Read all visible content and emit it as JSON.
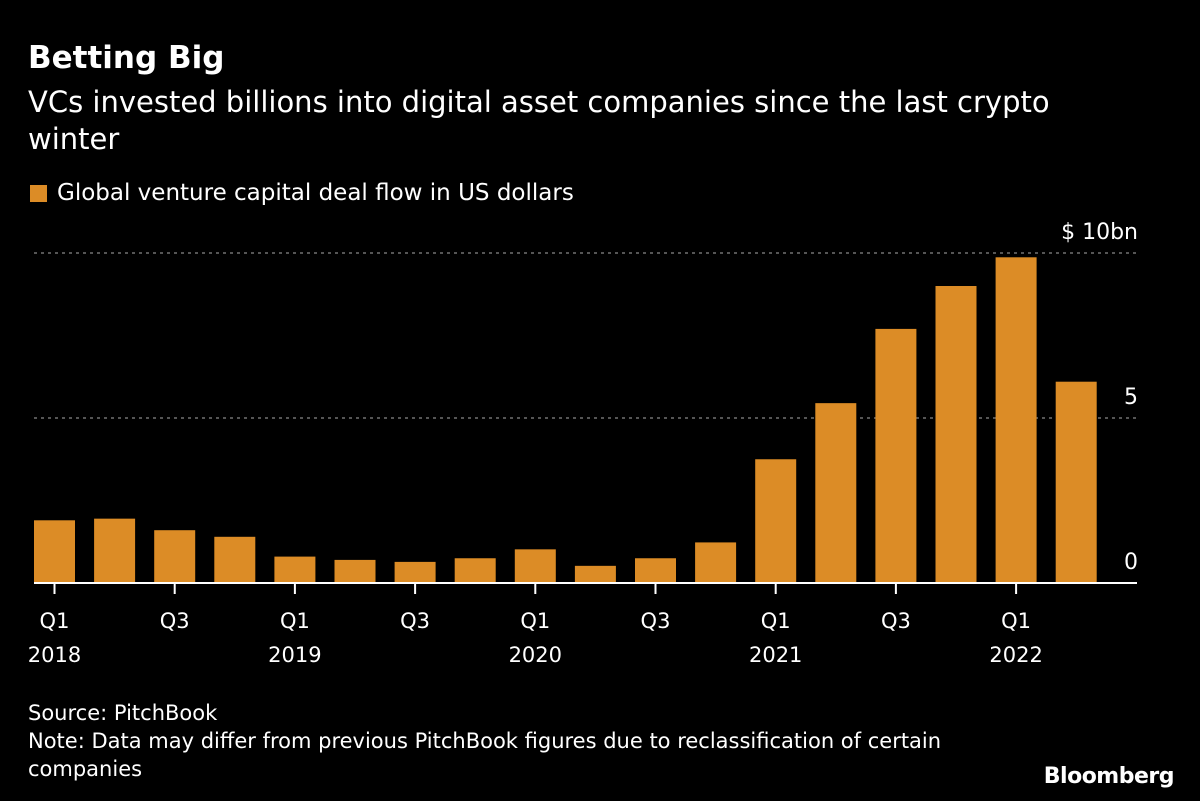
{
  "chart_data": {
    "type": "bar",
    "title": "Betting Big",
    "subtitle": "VCs invested billions into digital asset companies since the last crypto winter",
    "legend": [
      {
        "name": "Global venture capital deal flow in US dollars",
        "color": "#dc8c26"
      }
    ],
    "legend_placement": "top-left",
    "categories": [
      "Q1 2018",
      "Q2 2018",
      "Q3 2018",
      "Q4 2018",
      "Q1 2019",
      "Q2 2019",
      "Q3 2019",
      "Q4 2019",
      "Q1 2020",
      "Q2 2020",
      "Q3 2020",
      "Q4 2020",
      "Q1 2021",
      "Q2 2021",
      "Q3 2021",
      "Q4 2021",
      "Q1 2022",
      "Q2 2022"
    ],
    "series": [
      {
        "name": "Global venture capital deal flow in US dollars",
        "values": [
          1.9,
          1.95,
          1.6,
          1.4,
          0.8,
          0.7,
          0.64,
          0.75,
          1.02,
          0.52,
          0.75,
          1.23,
          3.75,
          5.45,
          7.7,
          9.0,
          9.87,
          6.1
        ]
      }
    ],
    "x_tick_labels": [
      {
        "index": 0,
        "quarter": "Q1",
        "year": "2018"
      },
      {
        "index": 2,
        "quarter": "Q3",
        "year": ""
      },
      {
        "index": 4,
        "quarter": "Q1",
        "year": "2019"
      },
      {
        "index": 6,
        "quarter": "Q3",
        "year": ""
      },
      {
        "index": 8,
        "quarter": "Q1",
        "year": "2020"
      },
      {
        "index": 10,
        "quarter": "Q3",
        "year": ""
      },
      {
        "index": 12,
        "quarter": "Q1",
        "year": "2021"
      },
      {
        "index": 14,
        "quarter": "Q3",
        "year": ""
      },
      {
        "index": 16,
        "quarter": "Q1",
        "year": "2022"
      }
    ],
    "y_ticks": [
      {
        "value": 0,
        "label": "0"
      },
      {
        "value": 5,
        "label": "5"
      },
      {
        "value": 10,
        "label": "$ 10bn"
      }
    ],
    "ylim": [
      0,
      10
    ],
    "y_axis_side": "right",
    "grid": "dashed horizontal",
    "bar_color": "#dc8c26",
    "background": "#000000"
  },
  "footer": {
    "source": "Source: PitchBook",
    "note": "Note: Data may differ from previous PitchBook figures due to reclassification of certain companies"
  },
  "logo": "Bloomberg"
}
